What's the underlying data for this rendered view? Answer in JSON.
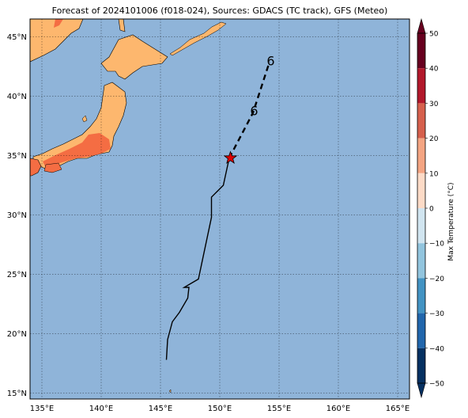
{
  "title": "Forecast of 2024101006 (f018-024), Sources: GDACS (TC track), GFS (Meteo)",
  "lon_labels": [
    "135°E",
    "140°E",
    "145°E",
    "150°E",
    "155°E",
    "160°E",
    "165°E"
  ],
  "lat_labels": [
    "15°N",
    "20°N",
    "25°N",
    "30°N",
    "35°N",
    "40°N",
    "45°N"
  ],
  "lon_values": [
    135,
    140,
    145,
    150,
    155,
    160,
    165
  ],
  "lat_values": [
    15,
    20,
    25,
    30,
    35,
    40,
    45
  ],
  "extent": {
    "lon_min": 134,
    "lon_max": 166,
    "lat_min": 14.5,
    "lat_max": 46.5
  },
  "colorbar": {
    "label": "Max Temperature (°C)",
    "ticks": [
      "50",
      "40",
      "30",
      "20",
      "10",
      "0",
      "−10",
      "−20",
      "−30",
      "−40",
      "−50"
    ],
    "tick_values": [
      50,
      40,
      30,
      20,
      10,
      0,
      -10,
      -20,
      -30,
      -40,
      -50
    ],
    "colors": [
      "#67001f",
      "#b2182b",
      "#d6604d",
      "#f4a582",
      "#fddbc7",
      "#ffffff",
      "#d1e5f0",
      "#92c5de",
      "#4393c3",
      "#2166ac",
      "#053061"
    ]
  },
  "colors": {
    "ocean": "#8fb4d9",
    "land_warm": "#fdb76e",
    "land_hot": "#f46d43",
    "track": "#000000",
    "star": "#e00000"
  },
  "track": {
    "past": [
      [
        145.5,
        17.8
      ],
      [
        145.6,
        19.5
      ],
      [
        146.0,
        21.0
      ],
      [
        146.6,
        21.8
      ],
      [
        147.3,
        23.0
      ],
      [
        147.4,
        23.9
      ],
      [
        147.0,
        23.9
      ],
      [
        148.2,
        24.6
      ],
      [
        149.3,
        29.8
      ],
      [
        149.3,
        31.5
      ],
      [
        150.3,
        32.5
      ],
      [
        150.8,
        34.8
      ]
    ],
    "forecast": [
      [
        150.8,
        34.8
      ],
      [
        152.8,
        38.6
      ],
      [
        154.2,
        42.9
      ]
    ],
    "current": [
      150.9,
      34.8
    ],
    "symbols": [
      [
        152.9,
        38.8
      ],
      [
        154.3,
        43.0
      ]
    ],
    "symbol_glyph": "6",
    "symbol_alt": "9"
  }
}
